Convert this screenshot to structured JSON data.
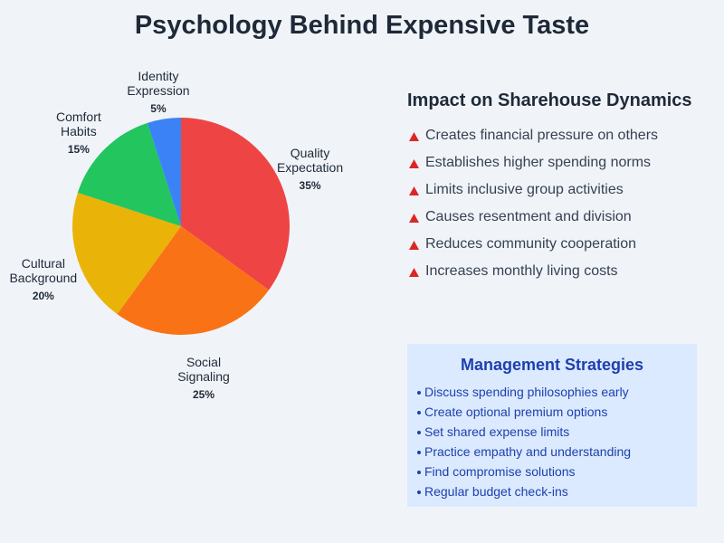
{
  "chart_data": {
    "type": "pie",
    "title": "Psychology Behind Expensive Taste",
    "categories": [
      "Quality Expectation",
      "Social Signaling",
      "Cultural Background",
      "Comfort Habits",
      "Identity Expression"
    ],
    "values": [
      35,
      25,
      20,
      15,
      5
    ],
    "value_labels": [
      "35%",
      "25%",
      "20%",
      "15%",
      "5%"
    ],
    "colors": [
      "#ef4444",
      "#f97316",
      "#eab308",
      "#22c55e",
      "#3b82f6"
    ]
  },
  "impact": {
    "title": "Impact on Sharehouse Dynamics",
    "items": [
      "Creates financial pressure on others",
      "Establishes higher spending norms",
      "Limits inclusive group activities",
      "Causes resentment and division",
      "Reduces community cooperation",
      "Increases monthly living costs"
    ]
  },
  "strategies": {
    "title": "Management Strategies",
    "items": [
      "Discuss spending philosophies early",
      "Create optional premium options",
      "Set shared expense limits",
      "Practice empathy and understanding",
      "Find compromise solutions",
      "Regular budget check-ins"
    ]
  }
}
